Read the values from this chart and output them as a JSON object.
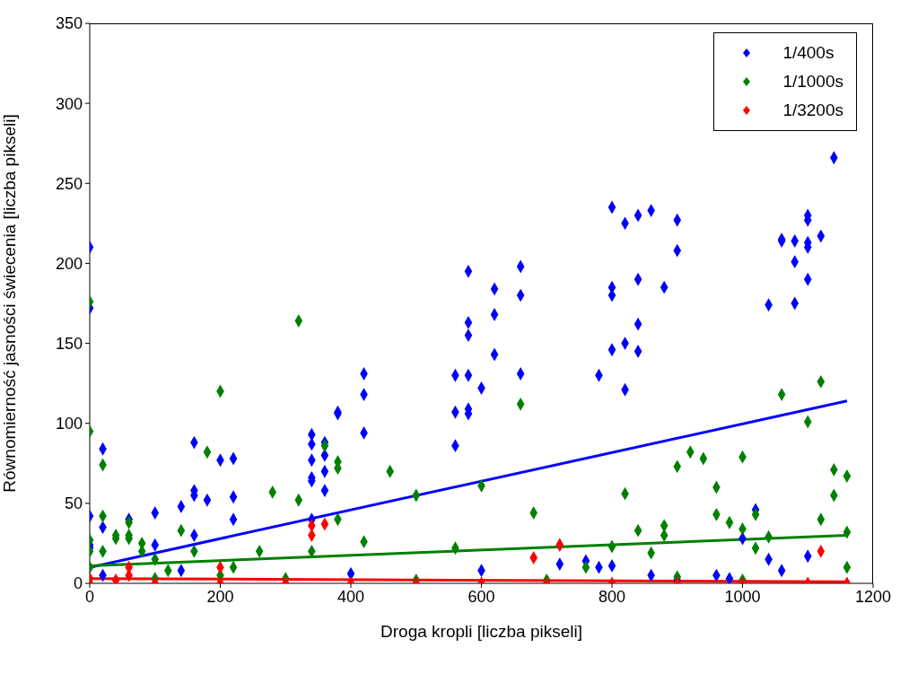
{
  "chart_data": {
    "type": "scatter",
    "xlabel": "Droga kropli [liczba pikseli]",
    "ylabel": "Równomierność jasności świecenia [liczba pikseli]",
    "xlim": [
      0,
      1200
    ],
    "ylim": [
      0,
      350
    ],
    "xticks": [
      0,
      200,
      400,
      600,
      800,
      1000,
      1200
    ],
    "yticks": [
      0,
      50,
      100,
      150,
      200,
      250,
      300,
      350
    ],
    "marker": "diamond",
    "legend": "top right",
    "series": [
      {
        "name": "1/400s",
        "color": "#0000ff",
        "x": [
          0,
          0,
          0,
          0,
          0,
          20,
          20,
          20,
          60,
          100,
          100,
          140,
          140,
          160,
          160,
          160,
          160,
          180,
          200,
          220,
          220,
          220,
          340,
          340,
          340,
          340,
          340,
          340,
          360,
          360,
          360,
          360,
          380,
          380,
          400,
          420,
          420,
          420,
          560,
          560,
          560,
          580,
          580,
          580,
          580,
          580,
          580,
          600,
          620,
          620,
          620,
          660,
          660,
          660,
          780,
          800,
          800,
          800,
          800,
          820,
          820,
          820,
          840,
          840,
          840,
          840,
          860,
          880,
          900,
          900,
          1040,
          1060,
          1060,
          1080,
          1080,
          1080,
          1100,
          1100,
          1100,
          1100,
          1100,
          1120,
          1140,
          600,
          720,
          760,
          780,
          800,
          860,
          960,
          980,
          1000,
          1020,
          1040,
          1060,
          1100,
          900
        ],
        "values": [
          210,
          172,
          42,
          24,
          22,
          84,
          35,
          5,
          40,
          44,
          24,
          48,
          8,
          88,
          58,
          55,
          30,
          52,
          77,
          78,
          54,
          40,
          93,
          87,
          77,
          66,
          64,
          40,
          88,
          80,
          70,
          58,
          107,
          106,
          6,
          131,
          118,
          94,
          130,
          107,
          86,
          195,
          163,
          155,
          130,
          109,
          106,
          122,
          184,
          168,
          143,
          198,
          180,
          131,
          130,
          235,
          185,
          180,
          146,
          225,
          150,
          121,
          230,
          190,
          162,
          145,
          233,
          185,
          227,
          208,
          174,
          215,
          214,
          201,
          175,
          214,
          230,
          227,
          213,
          210,
          190,
          217,
          266,
          8,
          12,
          14,
          10,
          11,
          5,
          5,
          3,
          28,
          46,
          15,
          8,
          17,
          2
        ]
      },
      {
        "name": "1/1000s",
        "color": "#008000",
        "x": [
          0,
          0,
          0,
          0,
          0,
          20,
          20,
          20,
          40,
          40,
          60,
          60,
          60,
          80,
          80,
          100,
          120,
          140,
          160,
          180,
          200,
          200,
          220,
          260,
          280,
          320,
          320,
          340,
          360,
          380,
          380,
          380,
          420,
          460,
          500,
          560,
          600,
          660,
          680,
          720,
          760,
          800,
          820,
          840,
          860,
          900,
          920,
          940,
          960,
          960,
          980,
          1000,
          1020,
          1040,
          1060,
          1100,
          1120,
          1120,
          1140,
          1140,
          1160,
          1160,
          1160,
          100,
          300,
          500,
          700,
          900,
          1000,
          880,
          880,
          1000,
          1020
        ],
        "values": [
          176,
          95,
          27,
          20,
          10,
          74,
          42,
          20,
          30,
          28,
          38,
          30,
          28,
          25,
          20,
          15,
          8,
          33,
          20,
          82,
          120,
          5,
          10,
          20,
          57,
          164,
          52,
          20,
          86,
          76,
          72,
          40,
          26,
          70,
          55,
          22,
          61,
          112,
          44,
          24,
          10,
          23,
          56,
          33,
          19,
          73,
          82,
          78,
          60,
          43,
          38,
          79,
          43,
          29,
          118,
          101,
          126,
          40,
          71,
          55,
          67,
          32,
          10,
          3,
          3,
          2,
          2,
          4,
          2,
          36,
          30,
          34,
          22
        ]
      },
      {
        "name": "1/3200s",
        "color": "#ff0000",
        "x": [
          0,
          60,
          200,
          340,
          340,
          360,
          680,
          720,
          1120,
          0,
          100,
          200,
          300,
          400,
          500,
          600,
          700,
          800,
          900,
          1000,
          1100,
          1160,
          40,
          60
        ],
        "values": [
          3,
          10,
          10,
          36,
          30,
          37,
          16,
          24,
          20,
          0,
          0,
          0,
          0,
          0,
          0,
          0,
          0,
          0,
          0,
          0,
          0,
          0,
          2,
          5
        ]
      },
      {
        "type": "line",
        "marker": "none",
        "color": "#0000ff",
        "x": [
          0,
          1160
        ],
        "values": [
          10,
          114
        ]
      },
      {
        "type": "line",
        "marker": "none",
        "color": "#008000",
        "x": [
          0,
          1160
        ],
        "values": [
          11,
          30
        ]
      },
      {
        "type": "line",
        "marker": "none",
        "color": "#ff0000",
        "x": [
          0,
          1160
        ],
        "values": [
          3,
          1
        ]
      }
    ]
  }
}
